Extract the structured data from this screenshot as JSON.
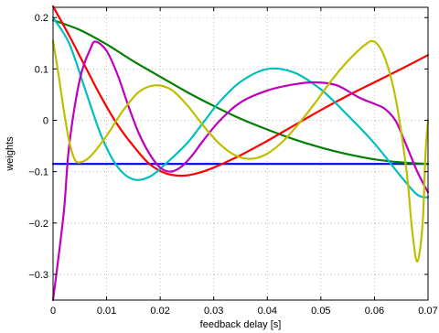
{
  "chart_data": {
    "type": "line",
    "xlabel": "feedback delay [s]",
    "ylabel": "weights",
    "xlim": [
      0,
      0.07
    ],
    "ylim": [
      -0.35,
      0.22
    ],
    "xticks": [
      0,
      0.01,
      0.02,
      0.03,
      0.04,
      0.05,
      0.06,
      0.07
    ],
    "xtick_labels": [
      "0",
      "0.01",
      "0.02",
      "0.03",
      "0.04",
      "0.05",
      "0.06",
      "0.07"
    ],
    "yticks": [
      -0.3,
      -0.2,
      -0.1,
      0,
      0.1,
      0.2
    ],
    "ytick_labels": [
      "−0.3",
      "−0.2",
      "−0.1",
      "0",
      "0.1",
      "0.2"
    ],
    "grid": true,
    "series": [
      {
        "color": "#0000ff",
        "points": [
          [
            0,
            -0.085
          ],
          [
            0.07,
            -0.085
          ]
        ]
      },
      {
        "color": "#008000",
        "points": [
          [
            0,
            0.195
          ],
          [
            0.005,
            0.176
          ],
          [
            0.01,
            0.148
          ],
          [
            0.015,
            0.115
          ],
          [
            0.02,
            0.085
          ],
          [
            0.025,
            0.055
          ],
          [
            0.03,
            0.028
          ],
          [
            0.035,
            0.003
          ],
          [
            0.04,
            -0.018
          ],
          [
            0.045,
            -0.037
          ],
          [
            0.05,
            -0.053
          ],
          [
            0.055,
            -0.066
          ],
          [
            0.06,
            -0.076
          ],
          [
            0.065,
            -0.082
          ],
          [
            0.07,
            -0.085
          ]
        ]
      },
      {
        "color": "#ff0000",
        "points": [
          [
            0,
            0.222
          ],
          [
            0.003,
            0.165
          ],
          [
            0.006,
            0.105
          ],
          [
            0.009,
            0.045
          ],
          [
            0.012,
            -0.008
          ],
          [
            0.015,
            -0.05
          ],
          [
            0.018,
            -0.085
          ],
          [
            0.021,
            -0.103
          ],
          [
            0.024,
            -0.108
          ],
          [
            0.027,
            -0.103
          ],
          [
            0.03,
            -0.092
          ],
          [
            0.035,
            -0.068
          ],
          [
            0.04,
            -0.04
          ],
          [
            0.045,
            -0.01
          ],
          [
            0.05,
            0.02
          ],
          [
            0.055,
            0.048
          ],
          [
            0.06,
            0.074
          ],
          [
            0.065,
            0.1
          ],
          [
            0.07,
            0.127
          ]
        ]
      },
      {
        "color": "#00bfbf",
        "points": [
          [
            0,
            0.2
          ],
          [
            0.003,
            0.15
          ],
          [
            0.006,
            0.06
          ],
          [
            0.009,
            -0.03
          ],
          [
            0.012,
            -0.09
          ],
          [
            0.015,
            -0.115
          ],
          [
            0.018,
            -0.11
          ],
          [
            0.021,
            -0.085
          ],
          [
            0.025,
            -0.045
          ],
          [
            0.028,
            -0.005
          ],
          [
            0.031,
            0.035
          ],
          [
            0.035,
            0.075
          ],
          [
            0.04,
            0.1
          ],
          [
            0.045,
            0.093
          ],
          [
            0.05,
            0.06
          ],
          [
            0.055,
            0.01
          ],
          [
            0.06,
            -0.045
          ],
          [
            0.065,
            -0.11
          ],
          [
            0.068,
            -0.145
          ],
          [
            0.07,
            -0.15
          ]
        ]
      },
      {
        "color": "#bf00bf",
        "points": [
          [
            0,
            -0.35
          ],
          [
            0.002,
            -0.18
          ],
          [
            0.003,
            -0.05
          ],
          [
            0.005,
            0.08
          ],
          [
            0.007,
            0.14
          ],
          [
            0.008,
            0.153
          ],
          [
            0.01,
            0.135
          ],
          [
            0.012,
            0.09
          ],
          [
            0.014,
            0.03
          ],
          [
            0.016,
            -0.025
          ],
          [
            0.018,
            -0.065
          ],
          [
            0.02,
            -0.092
          ],
          [
            0.022,
            -0.1
          ],
          [
            0.024,
            -0.09
          ],
          [
            0.026,
            -0.068
          ],
          [
            0.028,
            -0.04
          ],
          [
            0.031,
            -0.002
          ],
          [
            0.035,
            0.035
          ],
          [
            0.04,
            0.058
          ],
          [
            0.045,
            0.07
          ],
          [
            0.049,
            0.074
          ],
          [
            0.053,
            0.068
          ],
          [
            0.057,
            0.045
          ],
          [
            0.06,
            0.032
          ],
          [
            0.062,
            0.022
          ],
          [
            0.064,
            -0.002
          ],
          [
            0.066,
            -0.05
          ],
          [
            0.068,
            -0.1
          ],
          [
            0.07,
            -0.14
          ]
        ]
      },
      {
        "color": "#bfbf00",
        "points": [
          [
            0,
            0.155
          ],
          [
            0.001,
            0.09
          ],
          [
            0.002,
            0.02
          ],
          [
            0.003,
            -0.04
          ],
          [
            0.004,
            -0.075
          ],
          [
            0.005,
            -0.082
          ],
          [
            0.007,
            -0.07
          ],
          [
            0.01,
            -0.03
          ],
          [
            0.013,
            0.018
          ],
          [
            0.016,
            0.055
          ],
          [
            0.019,
            0.068
          ],
          [
            0.022,
            0.06
          ],
          [
            0.025,
            0.03
          ],
          [
            0.028,
            -0.01
          ],
          [
            0.031,
            -0.045
          ],
          [
            0.034,
            -0.068
          ],
          [
            0.037,
            -0.075
          ],
          [
            0.04,
            -0.065
          ],
          [
            0.043,
            -0.04
          ],
          [
            0.046,
            -0.005
          ],
          [
            0.049,
            0.035
          ],
          [
            0.052,
            0.078
          ],
          [
            0.055,
            0.115
          ],
          [
            0.058,
            0.145
          ],
          [
            0.06,
            0.153
          ],
          [
            0.062,
            0.12
          ],
          [
            0.064,
            0.04
          ],
          [
            0.066,
            -0.1
          ],
          [
            0.067,
            -0.21
          ],
          [
            0.068,
            -0.275
          ],
          [
            0.069,
            -0.2
          ],
          [
            0.0695,
            -0.07
          ],
          [
            0.07,
            0.0
          ]
        ]
      }
    ]
  }
}
